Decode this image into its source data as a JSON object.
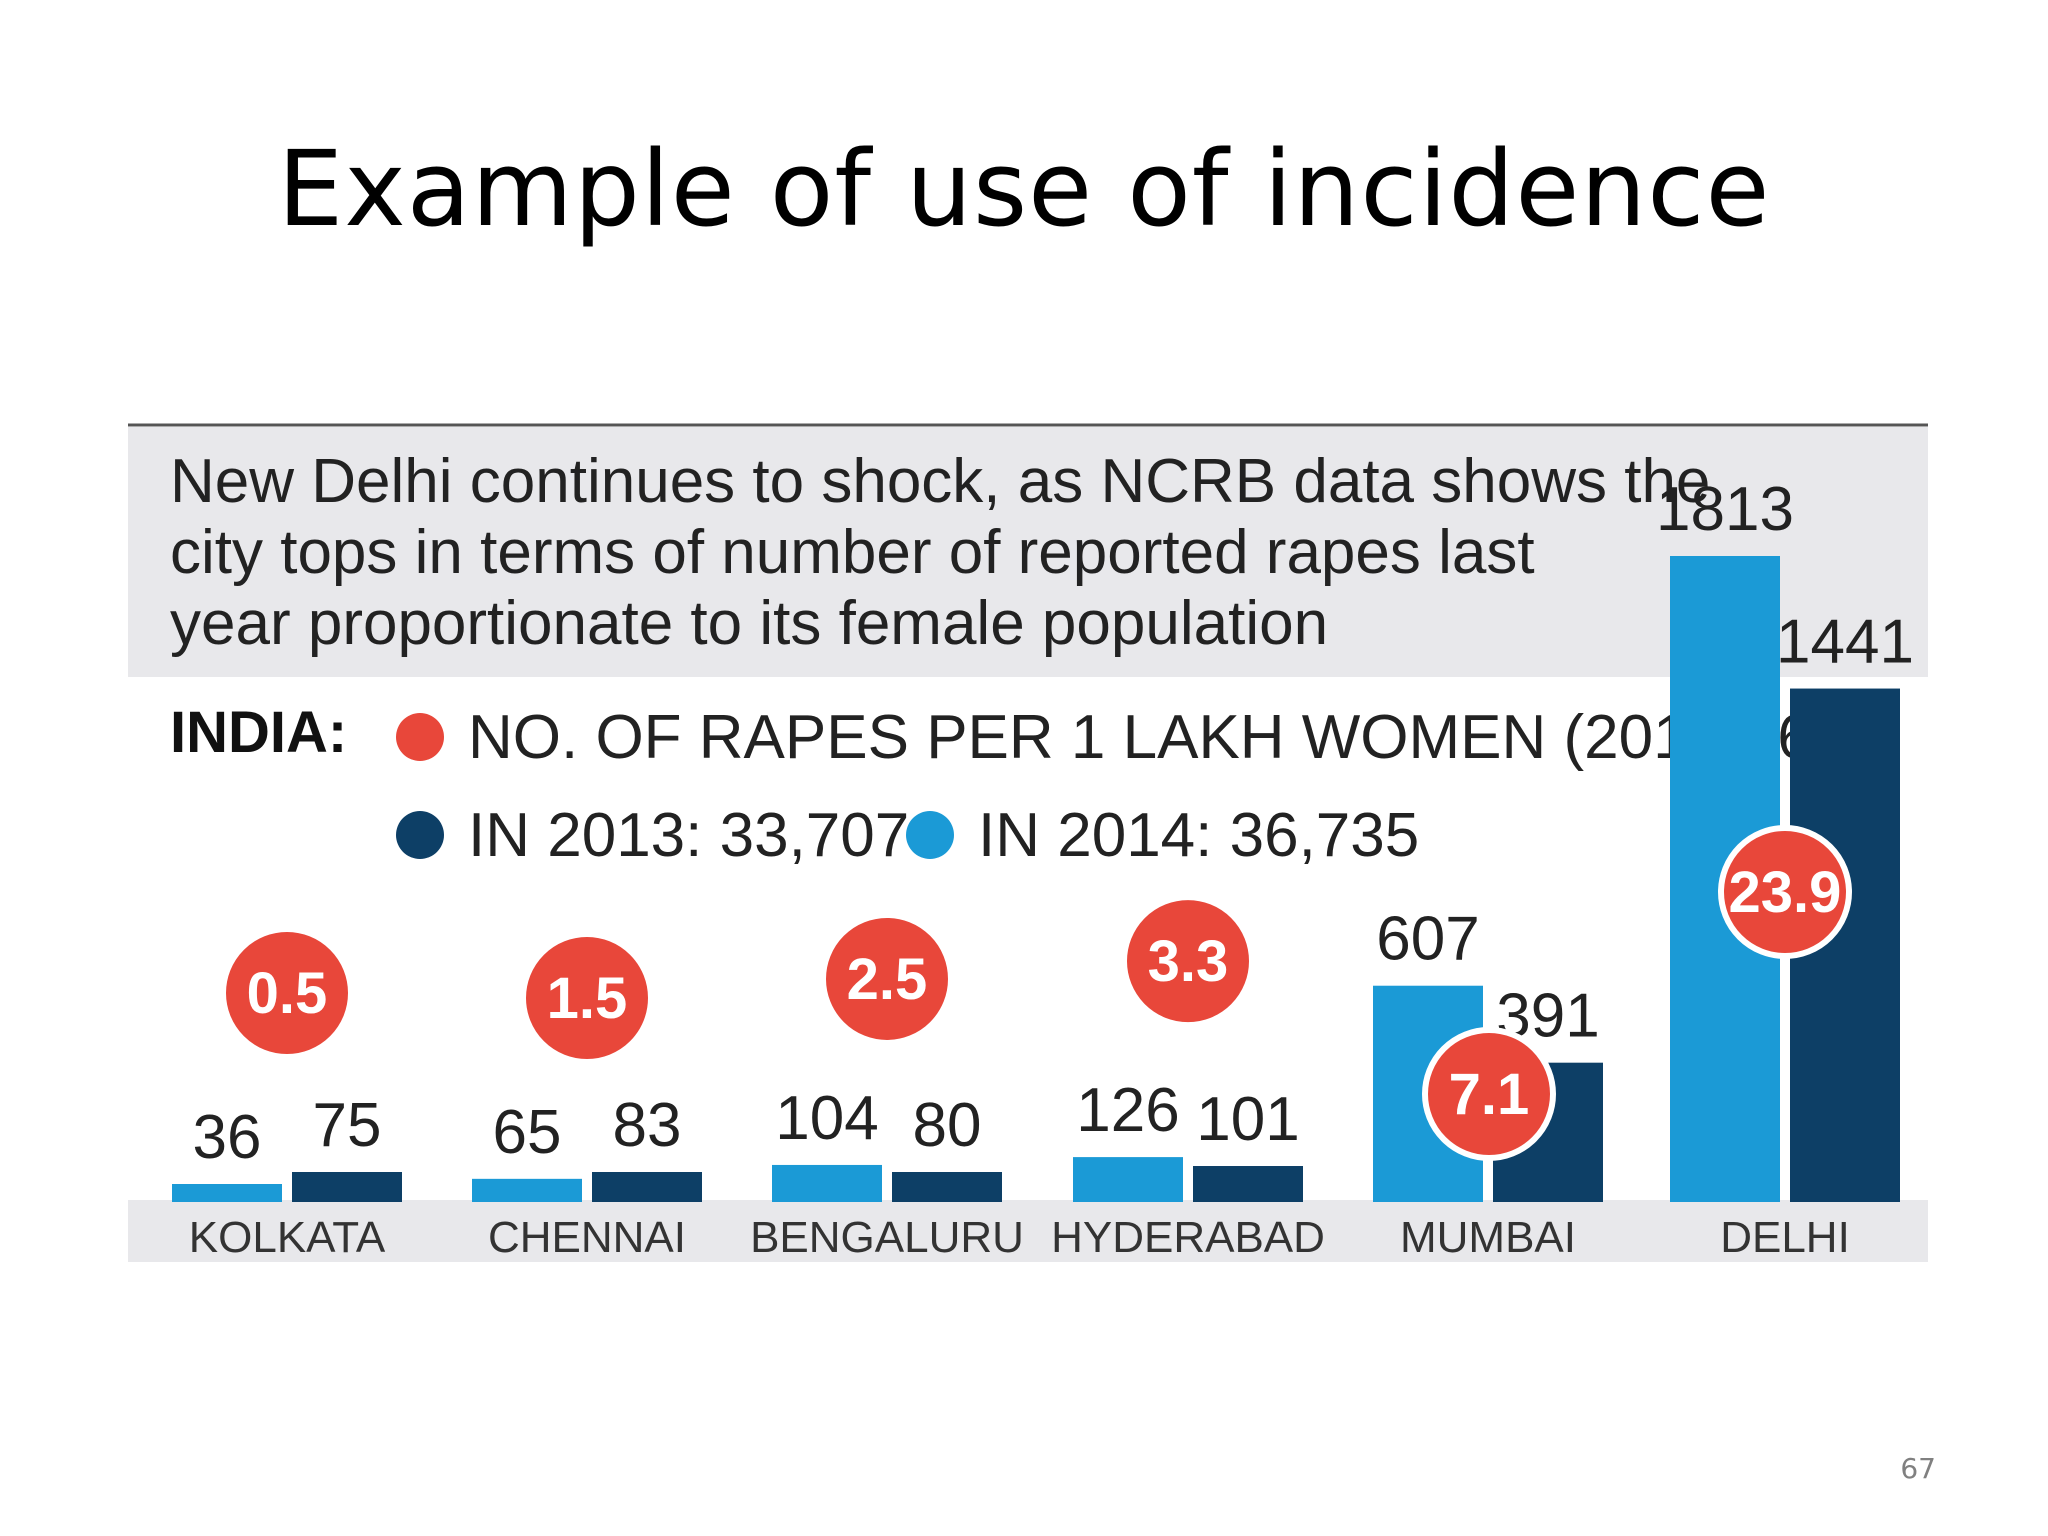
{
  "slide": {
    "title": "Example of use of incidence",
    "page_number": "67"
  },
  "infographic": {
    "headline_lines": [
      "New Delhi continues to shock, as NCRB data shows the",
      "city tops in terms of number of reported rapes last",
      "year proportionate to its female population"
    ],
    "india_label": "INDIA:",
    "legend": {
      "rate": "NO. OF RAPES PER 1 LAKH WOMEN (2014): 6.1",
      "y2013": "IN 2013: 33,707",
      "y2014": "IN 2014: 36,735"
    }
  },
  "colors": {
    "light_blue": "#1b9ad6",
    "dark_blue": "#0d3f66",
    "red": "#e8473a",
    "panel_gray": "#e8e8eb",
    "rule": "#555555"
  },
  "chart_data": {
    "type": "bar",
    "categories": [
      "KOLKATA",
      "CHENNAI",
      "BENGALURU",
      "HYDERABAD",
      "MUMBAI",
      "DELHI"
    ],
    "series": [
      {
        "name": "IN 2014",
        "color": "#1b9ad6",
        "values": [
          36,
          65,
          104,
          126,
          607,
          1813
        ]
      },
      {
        "name": "IN 2013",
        "color": "#0d3f66",
        "values": [
          75,
          83,
          80,
          101,
          391,
          1441
        ]
      }
    ],
    "rate_per_lakh": [
      "0.5",
      "1.5",
      "2.5",
      "3.3",
      "7.1",
      "23.9"
    ]
  }
}
